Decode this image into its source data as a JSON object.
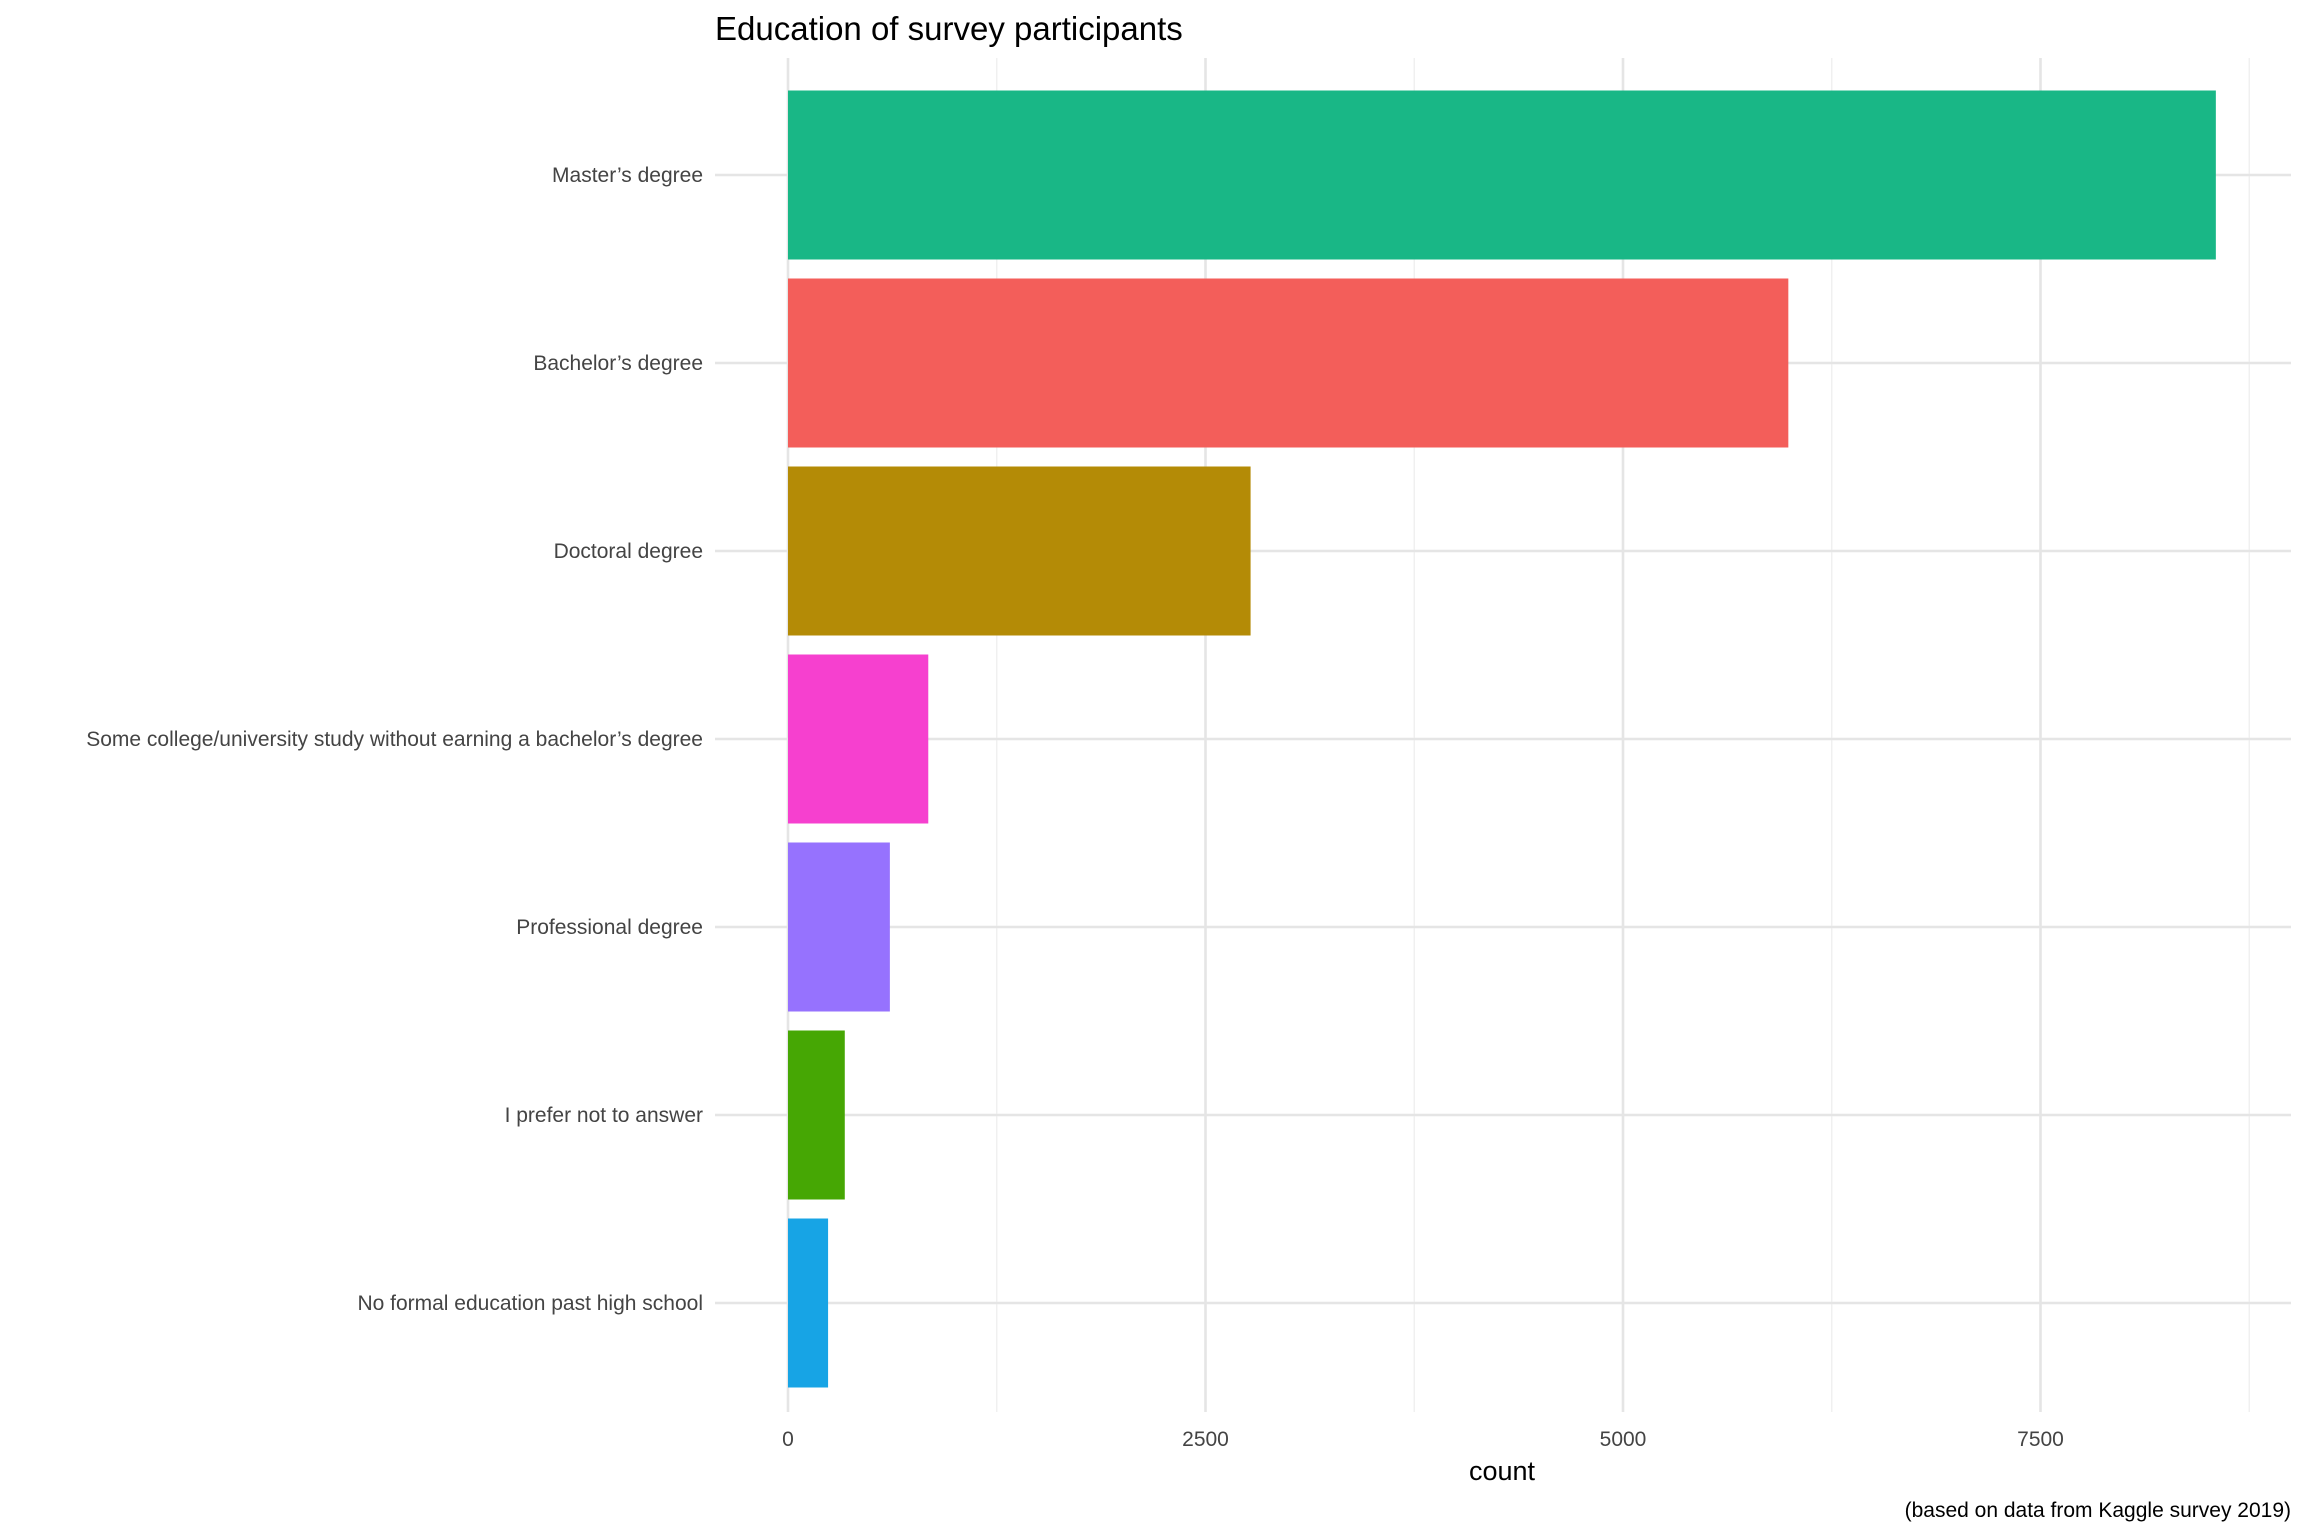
{
  "chart_data": {
    "type": "bar",
    "orientation": "horizontal",
    "title": "Education of survey participants",
    "xlabel": "count",
    "ylabel": "",
    "caption": "(based on data from Kaggle survey 2019)",
    "categories": [
      "Master’s degree",
      "Bachelor’s degree",
      "Doctoral degree",
      "Some college/university study without earning a bachelor’s degree",
      "Professional degree",
      "I prefer not to answer",
      "No formal education past high school"
    ],
    "values": [
      8550,
      5990,
      2770,
      840,
      610,
      340,
      240
    ],
    "colors": [
      "#19b786",
      "#f35e5a",
      "#b48b06",
      "#f640cf",
      "#9672fe",
      "#46a704",
      "#17a4e5"
    ],
    "xlim": [
      0,
      8850
    ],
    "x_ticks": [
      0,
      2500,
      5000,
      7500
    ],
    "x_tick_labels": [
      "0",
      "2500",
      "5000",
      "7500"
    ],
    "grid": true,
    "legend": "none"
  }
}
